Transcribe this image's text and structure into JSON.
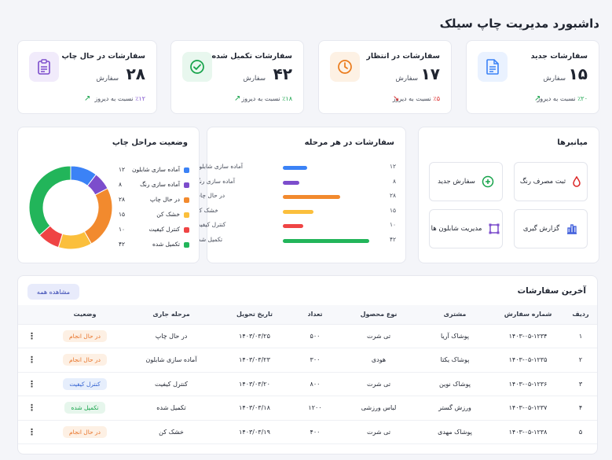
{
  "header": {
    "title": "داشبورد مدیریت چاپ سیلک"
  },
  "stats": [
    {
      "label": "سفارشات جدید",
      "value": "۱۵",
      "unit": "سفارش",
      "change": "٪۲۰",
      "change_text": "نسبت به دیروز",
      "trend": "up",
      "change_color": "#16a34a",
      "icon": "document-icon",
      "icon_color": "#3b82f6",
      "icon_bg": "#eaf2ff"
    },
    {
      "label": "سفارشات در انتظار",
      "value": "۱۷",
      "unit": "سفارش",
      "change": "٪۵",
      "change_text": "نسبت به دیروز",
      "trend": "down",
      "change_color": "#dc2626",
      "icon": "clock-icon",
      "icon_color": "#ea7a1a",
      "icon_bg": "#fdf1e4"
    },
    {
      "label": "سفارشات تکمیل شده",
      "value": "۴۲",
      "unit": "سفارش",
      "change": "٪۱۸",
      "change_text": "نسبت به دیروز",
      "trend": "up",
      "change_color": "#16a34a",
      "icon": "check-circle-icon",
      "icon_color": "#16a34a",
      "icon_bg": "#e8f7ee"
    },
    {
      "label": "سفارشات در حال چاپ",
      "value": "۲۸",
      "unit": "سفارش",
      "change": "٪۱۲",
      "change_text": "نسبت به دیروز",
      "trend": "up",
      "change_color": "#7c4dcc",
      "icon": "clipboard-icon",
      "icon_color": "#7c4dcc",
      "icon_bg": "#f1ebfb"
    }
  ],
  "shortcuts": {
    "title": "میانبرها",
    "items": [
      {
        "label": "ثبت مصرف رنگ",
        "icon": "ink-drop-icon",
        "color": "#dc2626"
      },
      {
        "label": "سفارش جدید",
        "icon": "plus-circle-icon",
        "color": "#16a34a"
      },
      {
        "label": "گزارش گیری",
        "icon": "bar-chart-icon",
        "color": "#3b5bdb"
      },
      {
        "label": "مدیریت شابلون ها",
        "icon": "frame-icon",
        "color": "#7c4dcc"
      }
    ]
  },
  "bar_section": {
    "title": "سفارشات در هر مرحله"
  },
  "donut_section": {
    "title": "وضعیت مراحل چاپ"
  },
  "chart_data": [
    {
      "type": "bar",
      "title": "سفارشات در هر مرحله",
      "categories": [
        "آماده سازی شابلون",
        "آماده سازی رنگ",
        "در حال چاپ",
        "خشک کن",
        "کنترل کیفیت",
        "تکمیل شده"
      ],
      "values": [
        12,
        8,
        28,
        15,
        10,
        42
      ],
      "value_labels": [
        "۱۲",
        "۸",
        "۲۸",
        "۱۵",
        "۱۰",
        "۴۲"
      ],
      "colors": [
        "#3b82f6",
        "#7c4dcc",
        "#f28a2e",
        "#fbbf3c",
        "#ef4444",
        "#22b55a"
      ],
      "xlim": [
        0,
        42
      ]
    },
    {
      "type": "pie",
      "title": "وضعیت مراحل چاپ",
      "categories": [
        "آماده سازی شابلون",
        "آماده سازی رنگ",
        "در حال چاپ",
        "خشک کن",
        "کنترل کیفیت",
        "تکمیل شده"
      ],
      "values": [
        12,
        8,
        28,
        15,
        10,
        42
      ],
      "value_labels": [
        "۱۲",
        "۸",
        "۲۸",
        "۱۵",
        "۱۰",
        "۴۲"
      ],
      "colors": [
        "#3b82f6",
        "#7c4dcc",
        "#f28a2e",
        "#fbbf3c",
        "#ef4444",
        "#22b55a"
      ],
      "legend": "right",
      "donut": true
    }
  ],
  "orders": {
    "title": "آخرین سفارشات",
    "view_all": "مشاهده همه",
    "columns": [
      "ردیف",
      "شماره سفارش",
      "مشتری",
      "نوع محصول",
      "تعداد",
      "تاریخ تحویل",
      "مرحله جاری",
      "وضعیت"
    ],
    "rows": [
      {
        "idx": "۱",
        "order": "۱۴۰۳-۰۵-۱۲۳۴",
        "customer": "پوشاک آریا",
        "product": "تی شرت",
        "qty": "۵۰۰",
        "date": "۱۴۰۳/۰۳/۲۵",
        "stage": "در حال چاپ",
        "status": "در حال انجام",
        "status_color": "#e8742a",
        "status_bg": "#fdf0e4"
      },
      {
        "idx": "۲",
        "order": "۱۴۰۳-۰۵-۱۲۳۵",
        "customer": "پوشاک یکتا",
        "product": "هودی",
        "qty": "۳۰۰",
        "date": "۱۴۰۳/۰۳/۲۳",
        "stage": "آماده سازی شابلون",
        "status": "در حال انجام",
        "status_color": "#e8742a",
        "status_bg": "#fdf0e4"
      },
      {
        "idx": "۳",
        "order": "۱۴۰۳-۰۵-۱۲۳۶",
        "customer": "پوشاک نوین",
        "product": "تی شرت",
        "qty": "۸۰۰",
        "date": "۱۴۰۳/۰۳/۲۰",
        "stage": "کنترل کیفیت",
        "status": "کنترل کیفیت",
        "status_color": "#2f5fd0",
        "status_bg": "#e6eefc"
      },
      {
        "idx": "۴",
        "order": "۱۴۰۳-۰۵-۱۲۳۷",
        "customer": "ورزش گستر",
        "product": "لباس ورزشی",
        "qty": "۱۲۰۰",
        "date": "۱۴۰۳/۰۳/۱۸",
        "stage": "تکمیل شده",
        "status": "تکمیل شده",
        "status_color": "#16a34a",
        "status_bg": "#e6f6ec"
      },
      {
        "idx": "۵",
        "order": "۱۴۰۳-۰۵-۱۲۳۸",
        "customer": "پوشاک مهدی",
        "product": "تی شرت",
        "qty": "۴۰۰",
        "date": "۱۴۰۳/۰۳/۱۹",
        "stage": "خشک کن",
        "status": "در حال انجام",
        "status_color": "#e8742a",
        "status_bg": "#fdf0e4"
      }
    ]
  }
}
